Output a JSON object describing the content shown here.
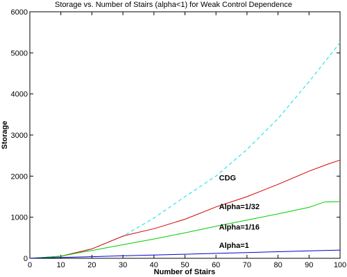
{
  "chart_data": {
    "type": "line",
    "title": "Storage vs. Number of Stairs  (alpha<1) for Weak Control Dependence",
    "xlabel": "Number of Stairs",
    "ylabel": "Storage",
    "xlim": [
      0,
      100
    ],
    "ylim": [
      0,
      6000
    ],
    "xticks": [
      0,
      10,
      20,
      30,
      40,
      50,
      60,
      70,
      80,
      90,
      100
    ],
    "yticks": [
      0,
      1000,
      2000,
      3000,
      4000,
      5000,
      6000
    ],
    "grid": false,
    "legend": "none",
    "series": [
      {
        "name": "CDG",
        "color": "#00e0e0",
        "dash": true,
        "x": [
          0,
          10,
          20,
          30,
          40,
          50,
          60,
          70,
          80,
          90,
          100
        ],
        "y": [
          0,
          50,
          230,
          540,
          980,
          1500,
          2000,
          2650,
          3400,
          4300,
          5250
        ]
      },
      {
        "name": "Alpha=1/32",
        "color": "#d40000",
        "dash": false,
        "x": [
          0,
          10,
          20,
          30,
          32,
          40,
          50,
          60,
          64,
          70,
          80,
          90,
          96,
          100
        ],
        "y": [
          0,
          50,
          230,
          540,
          580,
          720,
          950,
          1250,
          1350,
          1500,
          1800,
          2120,
          2290,
          2390
        ]
      },
      {
        "name": "Alpha=1/16",
        "color": "#00cc00",
        "dash": false,
        "x": [
          0,
          10,
          16,
          20,
          30,
          40,
          50,
          60,
          70,
          80,
          90,
          95,
          100
        ],
        "y": [
          0,
          50,
          140,
          190,
          330,
          470,
          620,
          780,
          930,
          1080,
          1240,
          1370,
          1380
        ]
      },
      {
        "name": "Alpha=1",
        "color": "#0000cc",
        "dash": false,
        "x": [
          0,
          10,
          20,
          30,
          40,
          50,
          60,
          70,
          80,
          90,
          100
        ],
        "y": [
          0,
          20,
          40,
          60,
          80,
          100,
          120,
          140,
          160,
          180,
          200
        ]
      }
    ],
    "annotations": [
      {
        "text": "CDG",
        "x": 61,
        "y": 1900
      },
      {
        "text": "Alpha=1/32",
        "x": 61,
        "y": 1200
      },
      {
        "text": "Alpha=1/16",
        "x": 61,
        "y": 700
      },
      {
        "text": "Alpha=1",
        "x": 61,
        "y": 250
      }
    ]
  }
}
